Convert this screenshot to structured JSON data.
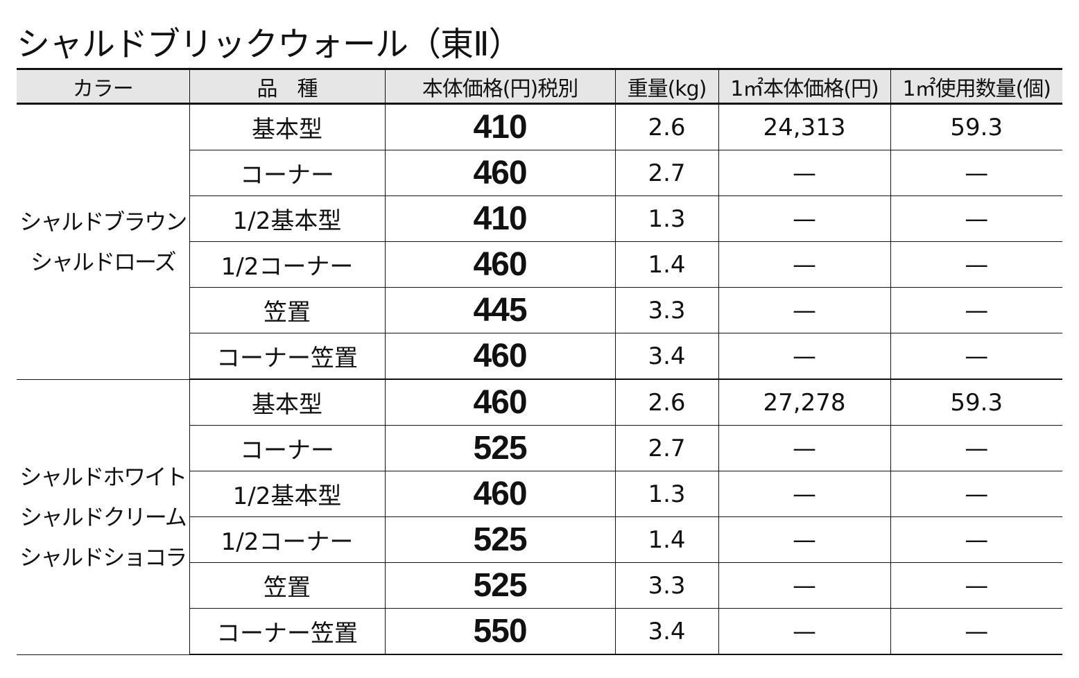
{
  "title": "シャルドブリックウォール（東Ⅱ）",
  "headers": [
    "カラー",
    "品　種",
    "本体価格(円)税別",
    "重量(kg)",
    "1㎡本体価格(円)",
    "1㎡使用数量(個)"
  ],
  "groups": [
    {
      "colors": [
        "シャルドブラウン",
        "シャルドローズ"
      ],
      "rows": [
        {
          "kind": "基本型",
          "price": "410",
          "weight": "2.6",
          "price_per_m2": "24,313",
          "qty_per_m2": "59.3"
        },
        {
          "kind": "コーナー",
          "price": "460",
          "weight": "2.7",
          "price_per_m2": "—",
          "qty_per_m2": "—"
        },
        {
          "kind": "1/2基本型",
          "price": "410",
          "weight": "1.3",
          "price_per_m2": "—",
          "qty_per_m2": "—"
        },
        {
          "kind": "1/2コーナー",
          "price": "460",
          "weight": "1.4",
          "price_per_m2": "—",
          "qty_per_m2": "—"
        },
        {
          "kind": "笠置",
          "price": "445",
          "weight": "3.3",
          "price_per_m2": "—",
          "qty_per_m2": "—"
        },
        {
          "kind": "コーナー笠置",
          "price": "460",
          "weight": "3.4",
          "price_per_m2": "—",
          "qty_per_m2": "—"
        }
      ]
    },
    {
      "colors": [
        "シャルドホワイト",
        "シャルドクリーム",
        "シャルドショコラ"
      ],
      "rows": [
        {
          "kind": "基本型",
          "price": "460",
          "weight": "2.6",
          "price_per_m2": "27,278",
          "qty_per_m2": "59.3"
        },
        {
          "kind": "コーナー",
          "price": "525",
          "weight": "2.7",
          "price_per_m2": "—",
          "qty_per_m2": "—"
        },
        {
          "kind": "1/2基本型",
          "price": "460",
          "weight": "1.3",
          "price_per_m2": "—",
          "qty_per_m2": "—"
        },
        {
          "kind": "1/2コーナー",
          "price": "525",
          "weight": "1.4",
          "price_per_m2": "—",
          "qty_per_m2": "—"
        },
        {
          "kind": "笠置",
          "price": "525",
          "weight": "3.3",
          "price_per_m2": "—",
          "qty_per_m2": "—"
        },
        {
          "kind": "コーナー笠置",
          "price": "550",
          "weight": "3.4",
          "price_per_m2": "—",
          "qty_per_m2": "—"
        }
      ]
    }
  ]
}
